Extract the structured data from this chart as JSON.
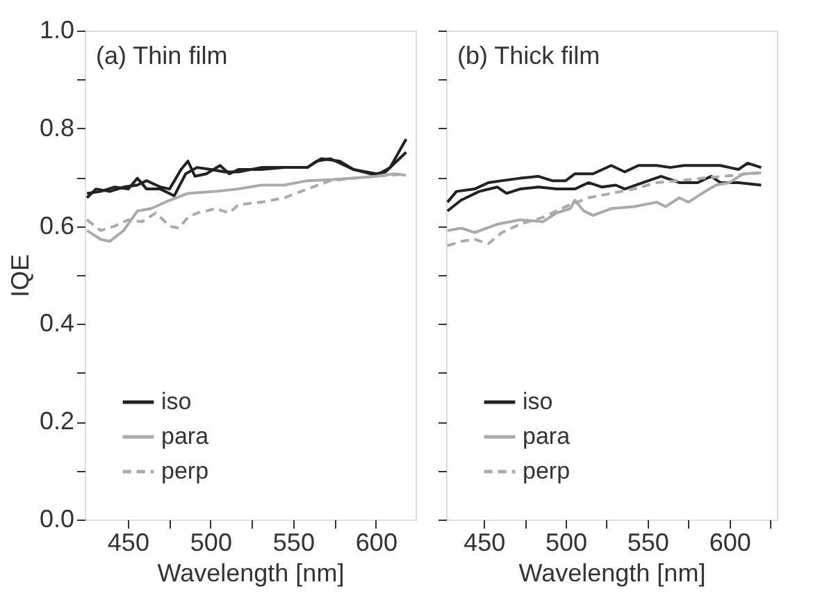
{
  "chart_data": [
    {
      "type": "line",
      "ylabel": "IQE",
      "xlabel": "Wavelength [nm]",
      "annotations": [
        "(a) Thin film"
      ],
      "xlim": [
        424,
        624
      ],
      "ylim": [
        0,
        1
      ],
      "xticks": [
        450,
        {
          "value": 475,
          "label": null
        },
        500,
        {
          "value": 525,
          "label": null
        },
        550,
        {
          "value": 575,
          "label": null
        },
        600
      ],
      "yticks": [
        {
          "value": 0,
          "label": "0.0"
        },
        {
          "value": 0.1,
          "label": null
        },
        0.2,
        {
          "value": 0.3,
          "label": null
        },
        0.4,
        {
          "value": 0.5,
          "label": null
        },
        0.6,
        {
          "value": 0.7,
          "label": null
        },
        0.8,
        {
          "value": 0.9,
          "label": null
        },
        {
          "value": 1,
          "label": "1.0"
        }
      ],
      "grid": false,
      "legend": "bottom left",
      "marker": "none",
      "series": [
        {
          "name": "iso",
          "color": "#222222",
          "line_style": "solid",
          "x": [
            425.3,
            430.8,
            439.2,
            447.5,
            455.8,
            461.4,
            469.7,
            475.3,
            482.2,
            486.4,
            490.6,
            497.5,
            505.8,
            511.4,
            516.9,
            530.8,
            544.7,
            558.6,
            564.2,
            572.5,
            578.1,
            586.4,
            600.3,
            605.8,
            618.3
          ],
          "values": [
            0.658,
            0.676,
            0.671,
            0.68,
            0.684,
            0.693,
            0.68,
            0.676,
            0.716,
            0.733,
            0.702,
            0.707,
            0.724,
            0.707,
            0.716,
            0.716,
            0.72,
            0.72,
            0.733,
            0.738,
            0.729,
            0.716,
            0.707,
            0.711,
            0.751
          ]
        },
        {
          "color": "#222222",
          "line_style": "solid",
          "x": [
            425.3,
            433.6,
            441.9,
            450.3,
            455.8,
            461.4,
            469.7,
            478.1,
            485,
            492,
            500.3,
            508.6,
            516.9,
            530.8,
            544.7,
            558.6,
            567,
            578.1,
            586.4,
            600.3,
            608.6,
            618.3
          ],
          "values": [
            0.667,
            0.671,
            0.68,
            0.676,
            0.698,
            0.676,
            0.676,
            0.662,
            0.707,
            0.72,
            0.716,
            0.711,
            0.711,
            0.72,
            0.72,
            0.72,
            0.738,
            0.733,
            0.716,
            0.704,
            0.72,
            0.778
          ]
        },
        {
          "name": "para",
          "color": "#aaaaaa",
          "line_style": "solid",
          "x": [
            425.3,
            433.6,
            439.2,
            447.5,
            455.8,
            464.2,
            475.3,
            486.4,
            503.1,
            516.9,
            530.8,
            544.7,
            558.6,
            572.5,
            586.4,
            600.3,
            611.4,
            618.3
          ],
          "values": [
            0.591,
            0.573,
            0.569,
            0.591,
            0.631,
            0.636,
            0.653,
            0.667,
            0.671,
            0.676,
            0.684,
            0.684,
            0.693,
            0.695,
            0.698,
            0.702,
            0.707,
            0.704
          ]
        },
        {
          "name": "perp",
          "color": "#aaaaaa",
          "line_style": "dashed",
          "x": [
            425.3,
            433.6,
            441.9,
            450.3,
            458.6,
            467,
            475.3,
            480.8,
            486.4,
            492,
            497.5,
            503.1,
            511.4,
            516.9,
            530.8,
            544.7,
            558.6,
            572.5,
            586.4,
            600.3,
            618.3
          ],
          "values": [
            0.613,
            0.591,
            0.6,
            0.613,
            0.609,
            0.627,
            0.6,
            0.596,
            0.618,
            0.627,
            0.631,
            0.636,
            0.627,
            0.644,
            0.649,
            0.658,
            0.676,
            0.693,
            0.698,
            0.702,
            0.707
          ]
        }
      ]
    },
    {
      "type": "line",
      "xlabel": "Wavelength [nm]",
      "annotations": [
        "(b) Thick film"
      ],
      "tick_labels": "x",
      "xlim": [
        427,
        629
      ],
      "ylim": [
        0,
        1
      ],
      "xticks": [
        450,
        {
          "value": 475,
          "label": null
        },
        500,
        {
          "value": 525,
          "label": null
        },
        550,
        {
          "value": 575,
          "label": null
        },
        600,
        {
          "value": 625,
          "label": null
        }
      ],
      "yticks": [
        {
          "value": 0,
          "label": null
        },
        {
          "value": 0.1,
          "label": null
        },
        {
          "value": 0.2,
          "label": null
        },
        {
          "value": 0.3,
          "label": null
        },
        {
          "value": 0.4,
          "label": null
        },
        {
          "value": 0.5,
          "label": null
        },
        {
          "value": 0.6,
          "label": null
        },
        {
          "value": 0.7,
          "label": null
        },
        {
          "value": 0.8,
          "label": null
        },
        {
          "value": 0.9,
          "label": null
        },
        {
          "value": 1,
          "label": null
        }
      ],
      "grid": false,
      "legend": "bottom left",
      "marker": "none",
      "series": [
        {
          "name": "iso",
          "color": "#222222",
          "line_style": "solid",
          "x": [
            427.8,
            433.3,
            444.4,
            452.8,
            461.1,
            472.2,
            483.3,
            491.7,
            500,
            505.6,
            516.7,
            527.8,
            536.1,
            544.4,
            555.6,
            563.9,
            572.2,
            583.3,
            594.4,
            600,
            605.6,
            611.1,
            619.4
          ],
          "values": [
            0.649,
            0.671,
            0.676,
            0.689,
            0.693,
            0.698,
            0.702,
            0.693,
            0.693,
            0.707,
            0.707,
            0.724,
            0.711,
            0.724,
            0.724,
            0.72,
            0.724,
            0.724,
            0.724,
            0.72,
            0.716,
            0.729,
            0.72
          ]
        },
        {
          "color": "#222222",
          "line_style": "solid",
          "x": [
            427.8,
            436.1,
            447.2,
            458.3,
            463.9,
            472.2,
            483.3,
            494.4,
            505.6,
            513.9,
            522.2,
            530.6,
            536.1,
            547.2,
            558.3,
            569.4,
            580.6,
            588.9,
            594.4,
            605.6,
            619.4
          ],
          "values": [
            0.631,
            0.653,
            0.671,
            0.68,
            0.667,
            0.676,
            0.68,
            0.676,
            0.676,
            0.689,
            0.68,
            0.684,
            0.676,
            0.689,
            0.702,
            0.689,
            0.689,
            0.702,
            0.689,
            0.689,
            0.684
          ]
        },
        {
          "name": "para",
          "color": "#aaaaaa",
          "line_style": "solid",
          "x": [
            427.8,
            436.1,
            444.4,
            458.3,
            472.2,
            486.1,
            494.4,
            502.8,
            505.6,
            511.1,
            516.7,
            527.8,
            541.7,
            555.6,
            561.1,
            569.4,
            575,
            583.3,
            591.7,
            600,
            608.3,
            619.4
          ],
          "values": [
            0.591,
            0.596,
            0.587,
            0.604,
            0.613,
            0.609,
            0.627,
            0.636,
            0.653,
            0.631,
            0.622,
            0.636,
            0.64,
            0.649,
            0.64,
            0.658,
            0.649,
            0.667,
            0.684,
            0.689,
            0.707,
            0.709
          ]
        },
        {
          "name": "perp",
          "color": "#aaaaaa",
          "line_style": "dashed",
          "x": [
            427.8,
            436.1,
            444.4,
            452.8,
            461.1,
            472.2,
            486.1,
            500,
            513.9,
            527.8,
            541.7,
            555.6,
            569.4,
            583.3,
            597.2,
            611.1,
            619.4
          ],
          "values": [
            0.56,
            0.569,
            0.573,
            0.564,
            0.587,
            0.604,
            0.618,
            0.64,
            0.658,
            0.667,
            0.676,
            0.689,
            0.693,
            0.698,
            0.702,
            0.707,
            0.709
          ]
        }
      ]
    }
  ]
}
